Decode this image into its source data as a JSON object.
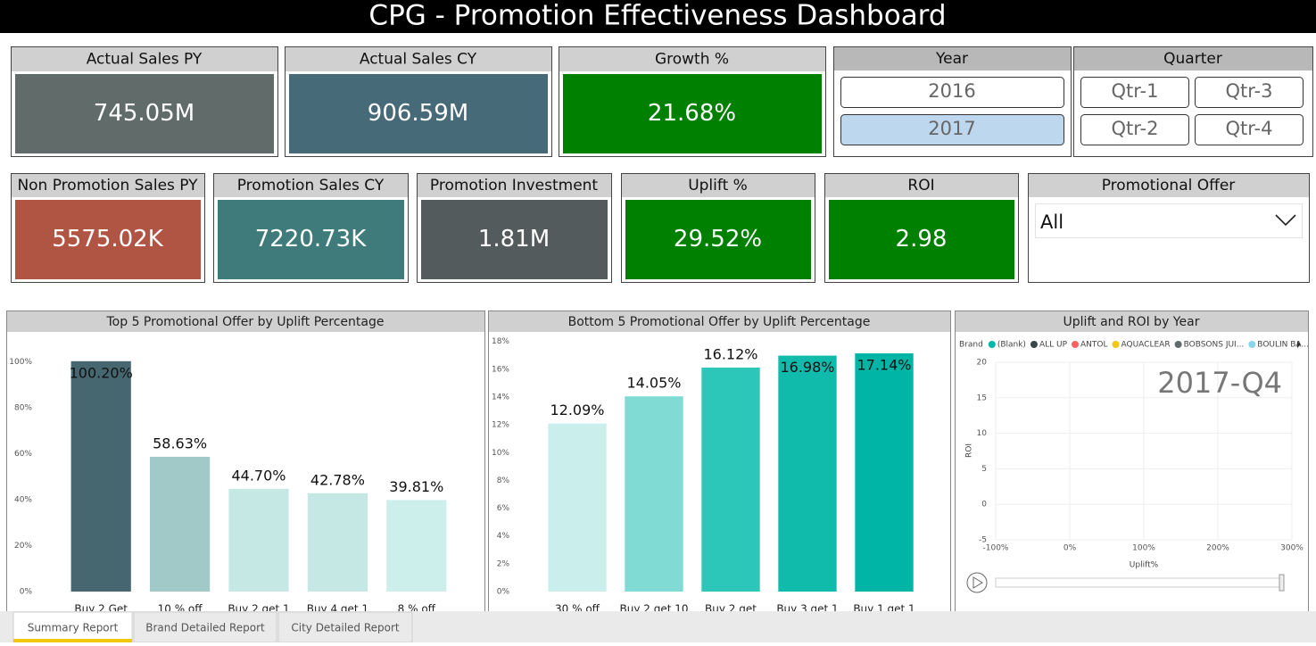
{
  "header": {
    "title": "CPG - Promotion Effectiveness Dashboard"
  },
  "cards": [
    {
      "label": "Actual Sales PY",
      "value": "745.05M"
    },
    {
      "label": "Actual Sales CY",
      "value": "906.59M"
    },
    {
      "label": "Growth %",
      "value": "21.68%"
    },
    {
      "label": "Non Promotion Sales PY",
      "value": "5575.02K"
    },
    {
      "label": "Promotion Sales CY",
      "value": "7220.73K"
    },
    {
      "label": "Promotion Investment",
      "value": "1.81M"
    },
    {
      "label": "Uplift %",
      "value": "29.52%"
    },
    {
      "label": "ROI",
      "value": "2.98"
    }
  ],
  "year_slicer": {
    "title": "Year",
    "options": [
      "2016",
      "2017"
    ],
    "selected": 1
  },
  "quarter_slicer": {
    "title": "Quarter",
    "options": [
      "Qtr-1",
      "Qtr-2",
      "Qtr-3",
      "Qtr-4"
    ]
  },
  "offer_filter": {
    "title": "Promotional Offer",
    "value": "All"
  },
  "chart_data": [
    {
      "type": "bar",
      "title": "Top  5 Promotional Offer by Uplift Percentage",
      "categories": [
        "Buy 2 Get",
        "10 % off",
        "Buy 2 get 1",
        "Buy 4 get 1",
        "8 % off"
      ],
      "values": [
        100.2,
        58.63,
        44.7,
        42.78,
        39.81
      ],
      "value_labels": [
        "100.20%",
        "58.63%",
        "44.70%",
        "42.78%",
        "39.81%"
      ],
      "colors": [
        "#476770",
        "#a0c9c7",
        "#c5e8e5",
        "#c5e8e5",
        "#ccefec"
      ],
      "ylim": [
        0,
        111
      ],
      "yticks": [
        {
          "value": 0,
          "label": "0%"
        },
        {
          "value": 20,
          "label": "20%"
        },
        {
          "value": 40,
          "label": "40%"
        },
        {
          "value": 60,
          "label": "60%"
        },
        {
          "value": 80,
          "label": "80%"
        },
        {
          "value": 100,
          "label": "100%"
        }
      ]
    },
    {
      "type": "bar",
      "title": "Bottom  5 Promotional Offer by Uplift Percentage",
      "categories": [
        "30 % off",
        "Buy 2 get 10",
        "Buy 2 get",
        "Buy 3 get 1",
        "Buy 1 get 1"
      ],
      "values": [
        12.09,
        14.05,
        16.12,
        16.98,
        17.14
      ],
      "value_labels": [
        "12.09%",
        "14.05%",
        "16.12%",
        "16.98%",
        "17.14%"
      ],
      "colors": [
        "#caeeeb",
        "#7fdbd3",
        "#2cc7b9",
        "#10bbac",
        "#00b4a6"
      ],
      "ylim": [
        0,
        18.3
      ],
      "yticks": [
        {
          "value": 0,
          "label": "0%"
        },
        {
          "value": 2,
          "label": "2%"
        },
        {
          "value": 4,
          "label": "4%"
        },
        {
          "value": 6,
          "label": "6%"
        },
        {
          "value": 8,
          "label": "8%"
        },
        {
          "value": 10,
          "label": "10%"
        },
        {
          "value": 12,
          "label": "12%"
        },
        {
          "value": 14,
          "label": "14%"
        },
        {
          "value": 16,
          "label": "16%"
        },
        {
          "value": 18,
          "label": "18%"
        }
      ]
    },
    {
      "type": "scatter",
      "title": "Uplift  and ROI by Year",
      "legend_title": "Brand",
      "series": [
        {
          "name": "(Blank)",
          "color": "#01b8aa"
        },
        {
          "name": "ALL UP",
          "color": "#374649"
        },
        {
          "name": "ANTOL",
          "color": "#fd625e"
        },
        {
          "name": "AQUACLEAR",
          "color": "#f2c80f"
        },
        {
          "name": "BOBSONS JUI...",
          "color": "#5f6b6d"
        },
        {
          "name": "BOULIN BA...",
          "color": "#8ad4eb"
        }
      ],
      "xlabel": "Uplift%",
      "ylabel": "ROI",
      "play_label": "2017-Q4",
      "grid": true,
      "xlim": [
        -100,
        300
      ],
      "xticks": [
        {
          "value": -100,
          "label": "-100%"
        },
        {
          "value": 0,
          "label": "0%"
        },
        {
          "value": 100,
          "label": "100%"
        },
        {
          "value": 200,
          "label": "200%"
        },
        {
          "value": 300,
          "label": "300%"
        }
      ],
      "ylim": [
        -5,
        20
      ],
      "yticks": [
        -5,
        0,
        5,
        10,
        15,
        20
      ]
    }
  ],
  "tabs": {
    "items": [
      "Summary Report",
      "Brand Detailed Report",
      "City Detailed Report"
    ],
    "active": 0
  }
}
